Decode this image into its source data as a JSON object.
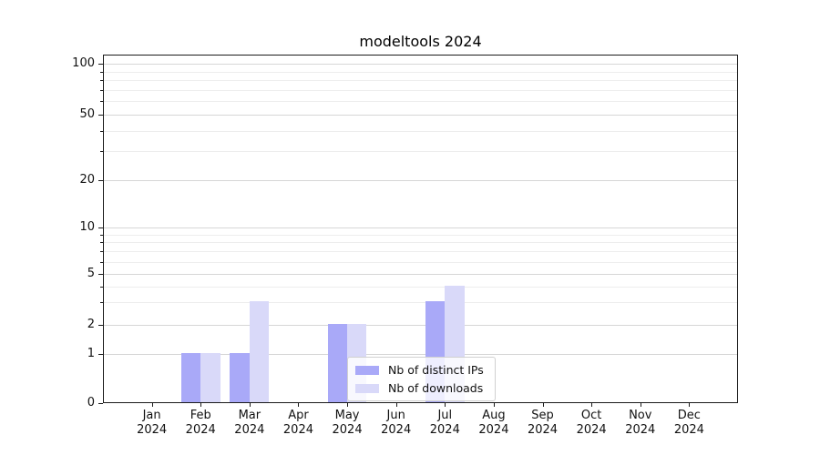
{
  "chart_data": {
    "type": "bar",
    "title": "modeltools 2024",
    "categories": [
      {
        "month": "Jan",
        "year": "2024"
      },
      {
        "month": "Feb",
        "year": "2024"
      },
      {
        "month": "Mar",
        "year": "2024"
      },
      {
        "month": "Apr",
        "year": "2024"
      },
      {
        "month": "May",
        "year": "2024"
      },
      {
        "month": "Jun",
        "year": "2024"
      },
      {
        "month": "Jul",
        "year": "2024"
      },
      {
        "month": "Aug",
        "year": "2024"
      },
      {
        "month": "Sep",
        "year": "2024"
      },
      {
        "month": "Oct",
        "year": "2024"
      },
      {
        "month": "Nov",
        "year": "2024"
      },
      {
        "month": "Dec",
        "year": "2024"
      }
    ],
    "series": [
      {
        "name": "Nb of distinct IPs",
        "color": "#a9a9f8",
        "values": [
          0,
          1,
          1,
          0,
          2,
          0,
          3,
          0,
          0,
          0,
          0,
          0
        ]
      },
      {
        "name": "Nb of downloads",
        "color": "#d9d9f9",
        "values": [
          0,
          1,
          3,
          0,
          2,
          0,
          4,
          0,
          0,
          0,
          0,
          0
        ]
      }
    ],
    "y_axis": {
      "scale": "log-like",
      "major_ticks": [
        0,
        1,
        2,
        5,
        10,
        20,
        50,
        100
      ],
      "minor_gridlines": [
        3,
        4,
        6,
        7,
        8,
        9,
        30,
        40,
        60,
        70,
        80,
        90
      ],
      "ylim": [
        0,
        115
      ]
    },
    "legend": {
      "location": "lower-center"
    },
    "grid": true,
    "colors": {
      "major_grid": "#d6d6d6",
      "minor_grid": "#ededed",
      "spine": "#1a1a1a",
      "text": "#111111",
      "legend_border": "#d0d0d0"
    }
  }
}
